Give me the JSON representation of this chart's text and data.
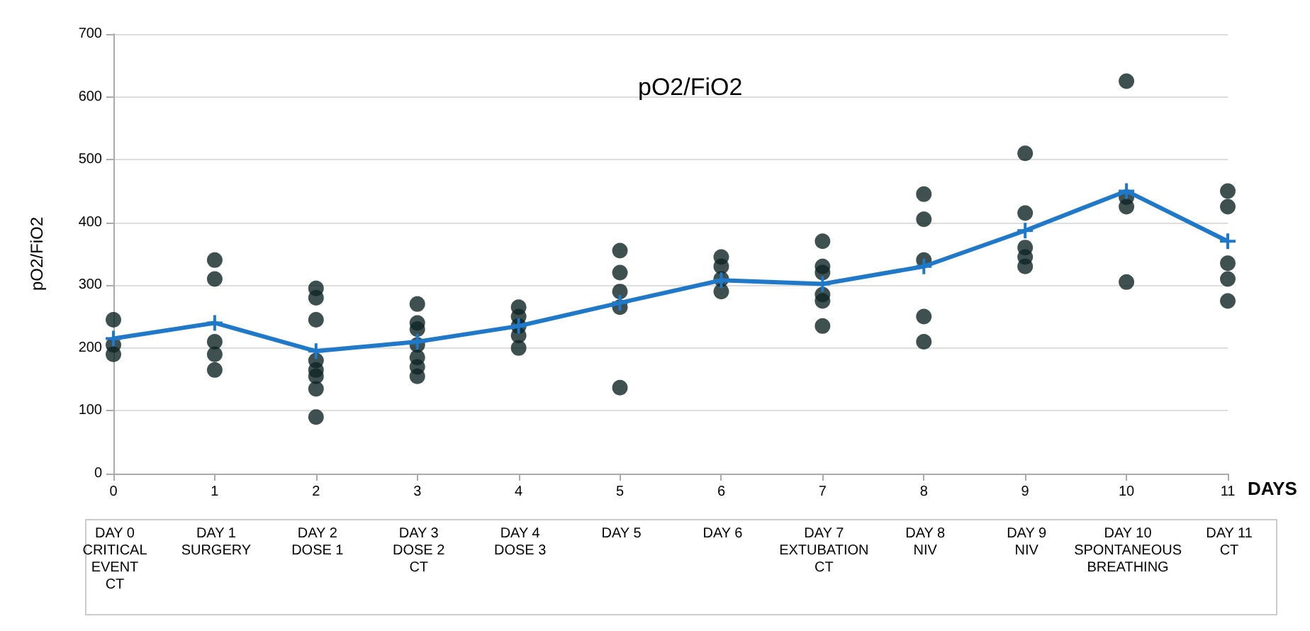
{
  "chart_data": {
    "type": "scatter",
    "title": "pO2/FiO2",
    "xlabel": "DAYS",
    "ylabel": "pO2/FiO2",
    "xlim": [
      0,
      11
    ],
    "xticks": [
      0,
      1,
      2,
      3,
      4,
      5,
      6,
      7,
      8,
      9,
      10,
      11
    ],
    "ylim": [
      0,
      700
    ],
    "yticks": [
      0,
      100,
      200,
      300,
      400,
      500,
      600,
      700
    ],
    "grid": "y",
    "series": [
      {
        "marker": "circle",
        "color": "#0f2424",
        "x": [
          0,
          0,
          0,
          1,
          1,
          1,
          1,
          1,
          2,
          2,
          2,
          2,
          2,
          2,
          2,
          2,
          3,
          3,
          3,
          3,
          3,
          3,
          3,
          4,
          4,
          4,
          4,
          4,
          5,
          5,
          5,
          5,
          5,
          6,
          6,
          6,
          6,
          7,
          7,
          7,
          7,
          7,
          7,
          8,
          8,
          8,
          8,
          8,
          9,
          9,
          9,
          9,
          9,
          10,
          10,
          10,
          10,
          11,
          11,
          11,
          11,
          11
        ],
        "values": [
          245,
          205,
          190,
          340,
          310,
          210,
          190,
          165,
          295,
          280,
          245,
          180,
          165,
          155,
          135,
          90,
          270,
          240,
          230,
          205,
          185,
          170,
          155,
          265,
          250,
          235,
          220,
          200,
          355,
          320,
          290,
          265,
          137,
          345,
          330,
          310,
          290,
          370,
          330,
          320,
          285,
          275,
          235,
          445,
          405,
          340,
          250,
          210,
          510,
          415,
          360,
          345,
          330,
          625,
          440,
          425,
          305,
          450,
          425,
          335,
          310,
          275
        ]
      },
      {
        "type": "line",
        "marker": "cross",
        "line_style": "solid",
        "color": "#1f78c8",
        "x": [
          0,
          1,
          2,
          3,
          4,
          5,
          6,
          7,
          8,
          9,
          10,
          11
        ],
        "values": [
          215,
          240,
          195,
          210,
          235,
          272,
          308,
          302,
          330,
          387,
          450,
          370
        ]
      }
    ],
    "annotations": [
      "DAY 0\nCRITICAL\nEVENT\nCT",
      "DAY 1\nSURGERY",
      "DAY 2\nDOSE 1",
      "DAY 3\nDOSE 2\nCT",
      "DAY 4\nDOSE 3",
      "DAY 5",
      "DAY 6",
      "DAY 7\nEXTUBATION\nCT",
      "DAY 8\nNIV",
      "DAY 9\nNIV",
      "DAY 10\nSPONTANEOUS\nBREATHING",
      "DAY 11\nCT"
    ]
  }
}
